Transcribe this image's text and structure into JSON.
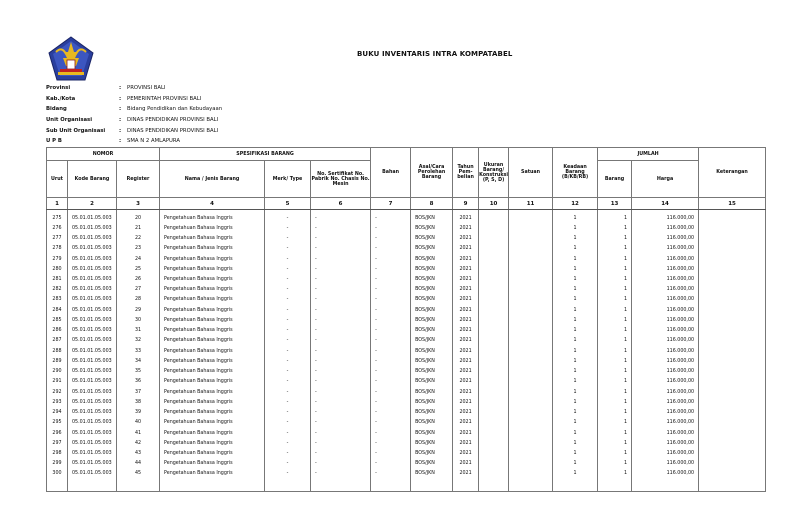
{
  "title": "BUKU INVENTARIS INTRA KOMPATABEL",
  "meta": [
    {
      "label": "Provinsi",
      "value": "PROVINSI BALI"
    },
    {
      "label": "Kab./Kota",
      "value": "PEMERINTAH PROVINSI BALI"
    },
    {
      "label": "Bidang",
      "value": "Bidang Pendidikan dan Kebudayaan"
    },
    {
      "label": "Unit Organisasi",
      "value": "DINAS PENDIDIKAN PROVINSI BALI"
    },
    {
      "label": "Sub Unit Organisasi",
      "value": "DINAS PENDIDIKAN PROVINSI BALI"
    },
    {
      "label": "U P B",
      "value": "SMA N 2 AMLAPURA"
    }
  ],
  "colon": ":",
  "table": {
    "groups": {
      "nomor": "NOMOR",
      "spesifikasi": "SPESIFIKASI BARANG",
      "jumlah": "JUMLAH"
    },
    "headers": {
      "urut": "Urut",
      "kode": "Kode Barang",
      "register": "Register",
      "nama": "Nama / Jenis Barang",
      "merk": "Merk/ Type",
      "sertifikat": "No. Sertifikat No. Pabrik No. Chasis No. Mesin",
      "bahan": "Bahan",
      "asal": "Asal/Cara Perolehan Barang",
      "tahun": "Tahun Pem- belian",
      "ukuran": "Ukuran Barang/ Konstruksi (P, S, D)",
      "satuan": "Satuan",
      "keadaan": "Keadaan Barang (B/KB/RB)",
      "barang": "Barang",
      "harga": "Harga",
      "keterangan": "Keterangan"
    },
    "col_numbers": [
      "1",
      "2",
      "3",
      "4",
      "5",
      "6",
      "7",
      "8",
      "9",
      "10",
      "11",
      "12",
      "13",
      "14",
      "15"
    ],
    "rows": [
      {
        "urut": "275",
        "kode": "05.01.01.05.003",
        "register": "20",
        "nama": "Pengetahuan Bahasa Inggris",
        "merk": "-",
        "sertifikat": "-",
        "bahan": "-",
        "asal": "BOS/JKN",
        "tahun": "2021",
        "ukuran": "",
        "satuan": "",
        "keadaan": "1",
        "barang": "1",
        "harga": "116.000,00",
        "keterangan": ""
      },
      {
        "urut": "276",
        "kode": "05.01.01.05.003",
        "register": "21",
        "nama": "Pengetahuan Bahasa Inggris",
        "merk": "-",
        "sertifikat": "-",
        "bahan": "-",
        "asal": "BOS/JKN",
        "tahun": "2021",
        "ukuran": "",
        "satuan": "",
        "keadaan": "1",
        "barang": "1",
        "harga": "116.000,00",
        "keterangan": ""
      },
      {
        "urut": "277",
        "kode": "05.01.01.05.003",
        "register": "22",
        "nama": "Pengetahuan Bahasa Inggris",
        "merk": "-",
        "sertifikat": "-",
        "bahan": "-",
        "asal": "BOS/JKN",
        "tahun": "2021",
        "ukuran": "",
        "satuan": "",
        "keadaan": "1",
        "barang": "1",
        "harga": "116.000,00",
        "keterangan": ""
      },
      {
        "urut": "278",
        "kode": "05.01.01.05.003",
        "register": "23",
        "nama": "Pengetahuan Bahasa Inggris",
        "merk": "-",
        "sertifikat": "-",
        "bahan": "-",
        "asal": "BOS/JKN",
        "tahun": "2021",
        "ukuran": "",
        "satuan": "",
        "keadaan": "1",
        "barang": "1",
        "harga": "116.000,00",
        "keterangan": ""
      },
      {
        "urut": "279",
        "kode": "05.01.01.05.003",
        "register": "24",
        "nama": "Pengetahuan Bahasa Inggris",
        "merk": "-",
        "sertifikat": "-",
        "bahan": "-",
        "asal": "BOS/JKN",
        "tahun": "2021",
        "ukuran": "",
        "satuan": "",
        "keadaan": "1",
        "barang": "1",
        "harga": "116.000,00",
        "keterangan": ""
      },
      {
        "urut": "280",
        "kode": "05.01.01.05.003",
        "register": "25",
        "nama": "Pengetahuan Bahasa Inggris",
        "merk": "-",
        "sertifikat": "-",
        "bahan": "-",
        "asal": "BOS/JKN",
        "tahun": "2021",
        "ukuran": "",
        "satuan": "",
        "keadaan": "1",
        "barang": "1",
        "harga": "116.000,00",
        "keterangan": ""
      },
      {
        "urut": "281",
        "kode": "05.01.01.05.003",
        "register": "26",
        "nama": "Pengetahuan Bahasa Inggris",
        "merk": "-",
        "sertifikat": "-",
        "bahan": "-",
        "asal": "BOS/JKN",
        "tahun": "2021",
        "ukuran": "",
        "satuan": "",
        "keadaan": "1",
        "barang": "1",
        "harga": "116.000,00",
        "keterangan": ""
      },
      {
        "urut": "282",
        "kode": "05.01.01.05.003",
        "register": "27",
        "nama": "Pengetahuan Bahasa Inggris",
        "merk": "-",
        "sertifikat": "-",
        "bahan": "-",
        "asal": "BOS/JKN",
        "tahun": "2021",
        "ukuran": "",
        "satuan": "",
        "keadaan": "1",
        "barang": "1",
        "harga": "116.000,00",
        "keterangan": ""
      },
      {
        "urut": "283",
        "kode": "05.01.01.05.003",
        "register": "28",
        "nama": "Pengetahuan Bahasa Inggris",
        "merk": "-",
        "sertifikat": "-",
        "bahan": "-",
        "asal": "BOS/JKN",
        "tahun": "2021",
        "ukuran": "",
        "satuan": "",
        "keadaan": "1",
        "barang": "1",
        "harga": "116.000,00",
        "keterangan": ""
      },
      {
        "urut": "284",
        "kode": "05.01.01.05.003",
        "register": "29",
        "nama": "Pengetahuan Bahasa Inggris",
        "merk": "-",
        "sertifikat": "-",
        "bahan": "-",
        "asal": "BOS/JKN",
        "tahun": "2021",
        "ukuran": "",
        "satuan": "",
        "keadaan": "1",
        "barang": "1",
        "harga": "116.000,00",
        "keterangan": ""
      },
      {
        "urut": "285",
        "kode": "05.01.01.05.003",
        "register": "30",
        "nama": "Pengetahuan Bahasa Inggris",
        "merk": "-",
        "sertifikat": "-",
        "bahan": "-",
        "asal": "BOS/JKN",
        "tahun": "2021",
        "ukuran": "",
        "satuan": "",
        "keadaan": "1",
        "barang": "1",
        "harga": "116.000,00",
        "keterangan": ""
      },
      {
        "urut": "286",
        "kode": "05.01.01.05.003",
        "register": "31",
        "nama": "Pengetahuan Bahasa Inggris",
        "merk": "-",
        "sertifikat": "-",
        "bahan": "-",
        "asal": "BOS/JKN",
        "tahun": "2021",
        "ukuran": "",
        "satuan": "",
        "keadaan": "1",
        "barang": "1",
        "harga": "116.000,00",
        "keterangan": ""
      },
      {
        "urut": "287",
        "kode": "05.01.01.05.003",
        "register": "32",
        "nama": "Pengetahuan Bahasa Inggris",
        "merk": "-",
        "sertifikat": "-",
        "bahan": "-",
        "asal": "BOS/JKN",
        "tahun": "2021",
        "ukuran": "",
        "satuan": "",
        "keadaan": "1",
        "barang": "1",
        "harga": "116.000,00",
        "keterangan": ""
      },
      {
        "urut": "288",
        "kode": "05.01.01.05.003",
        "register": "33",
        "nama": "Pengetahuan Bahasa Inggris",
        "merk": "-",
        "sertifikat": "-",
        "bahan": "-",
        "asal": "BOS/JKN",
        "tahun": "2021",
        "ukuran": "",
        "satuan": "",
        "keadaan": "1",
        "barang": "1",
        "harga": "116.000,00",
        "keterangan": ""
      },
      {
        "urut": "289",
        "kode": "05.01.01.05.003",
        "register": "34",
        "nama": "Pengetahuan Bahasa Inggris",
        "merk": "-",
        "sertifikat": "-",
        "bahan": "-",
        "asal": "BOS/JKN",
        "tahun": "2021",
        "ukuran": "",
        "satuan": "",
        "keadaan": "1",
        "barang": "1",
        "harga": "116.000,00",
        "keterangan": ""
      },
      {
        "urut": "290",
        "kode": "05.01.01.05.003",
        "register": "35",
        "nama": "Pengetahuan Bahasa Inggris",
        "merk": "-",
        "sertifikat": "-",
        "bahan": "-",
        "asal": "BOS/JKN",
        "tahun": "2021",
        "ukuran": "",
        "satuan": "",
        "keadaan": "1",
        "barang": "1",
        "harga": "116.000,00",
        "keterangan": ""
      },
      {
        "urut": "291",
        "kode": "05.01.01.05.003",
        "register": "36",
        "nama": "Pengetahuan Bahasa Inggris",
        "merk": "-",
        "sertifikat": "-",
        "bahan": "-",
        "asal": "BOS/JKN",
        "tahun": "2021",
        "ukuran": "",
        "satuan": "",
        "keadaan": "1",
        "barang": "1",
        "harga": "116.000,00",
        "keterangan": ""
      },
      {
        "urut": "292",
        "kode": "05.01.01.05.003",
        "register": "37",
        "nama": "Pengetahuan Bahasa Inggris",
        "merk": "-",
        "sertifikat": "-",
        "bahan": "-",
        "asal": "BOS/JKN",
        "tahun": "2021",
        "ukuran": "",
        "satuan": "",
        "keadaan": "1",
        "barang": "1",
        "harga": "116.000,00",
        "keterangan": ""
      },
      {
        "urut": "293",
        "kode": "05.01.01.05.003",
        "register": "38",
        "nama": "Pengetahuan Bahasa Inggris",
        "merk": "-",
        "sertifikat": "-",
        "bahan": "-",
        "asal": "BOS/JKN",
        "tahun": "2021",
        "ukuran": "",
        "satuan": "",
        "keadaan": "1",
        "barang": "1",
        "harga": "116.000,00",
        "keterangan": ""
      },
      {
        "urut": "294",
        "kode": "05.01.01.05.003",
        "register": "39",
        "nama": "Pengetahuan Bahasa Inggris",
        "merk": "-",
        "sertifikat": "-",
        "bahan": "-",
        "asal": "BOS/JKN",
        "tahun": "2021",
        "ukuran": "",
        "satuan": "",
        "keadaan": "1",
        "barang": "1",
        "harga": "116.000,00",
        "keterangan": ""
      },
      {
        "urut": "295",
        "kode": "05.01.01.05.003",
        "register": "40",
        "nama": "Pengetahuan Bahasa Inggris",
        "merk": "-",
        "sertifikat": "-",
        "bahan": "-",
        "asal": "BOS/JKN",
        "tahun": "2021",
        "ukuran": "",
        "satuan": "",
        "keadaan": "1",
        "barang": "1",
        "harga": "116.000,00",
        "keterangan": ""
      },
      {
        "urut": "296",
        "kode": "05.01.01.05.003",
        "register": "41",
        "nama": "Pengetahuan Bahasa Inggris",
        "merk": "-",
        "sertifikat": "-",
        "bahan": "-",
        "asal": "BOS/JKN",
        "tahun": "2021",
        "ukuran": "",
        "satuan": "",
        "keadaan": "1",
        "barang": "1",
        "harga": "116.000,00",
        "keterangan": ""
      },
      {
        "urut": "297",
        "kode": "05.01.01.05.003",
        "register": "42",
        "nama": "Pengetahuan Bahasa Inggris",
        "merk": "-",
        "sertifikat": "-",
        "bahan": "-",
        "asal": "BOS/JKN",
        "tahun": "2021",
        "ukuran": "",
        "satuan": "",
        "keadaan": "1",
        "barang": "1",
        "harga": "116.000,00",
        "keterangan": ""
      },
      {
        "urut": "298",
        "kode": "05.01.01.05.003",
        "register": "43",
        "nama": "Pengetahuan Bahasa Inggris",
        "merk": "-",
        "sertifikat": "-",
        "bahan": "-",
        "asal": "BOS/JKN",
        "tahun": "2021",
        "ukuran": "",
        "satuan": "",
        "keadaan": "1",
        "barang": "1",
        "harga": "116.000,00",
        "keterangan": ""
      },
      {
        "urut": "299",
        "kode": "05.01.01.05.003",
        "register": "44",
        "nama": "Pengetahuan Bahasa Inggris",
        "merk": "-",
        "sertifikat": "-",
        "bahan": "-",
        "asal": "BOS/JKN",
        "tahun": "2021",
        "ukuran": "",
        "satuan": "",
        "keadaan": "1",
        "barang": "1",
        "harga": "116.000,00",
        "keterangan": ""
      },
      {
        "urut": "300",
        "kode": "05.01.01.05.003",
        "register": "45",
        "nama": "Pengetahuan Bahasa Inggris",
        "merk": "-",
        "sertifikat": "-",
        "bahan": "-",
        "asal": "BOS/JKN",
        "tahun": "2021",
        "ukuran": "",
        "satuan": "",
        "keadaan": "1",
        "barang": "1",
        "harga": "116.000,00",
        "keterangan": ""
      }
    ]
  }
}
